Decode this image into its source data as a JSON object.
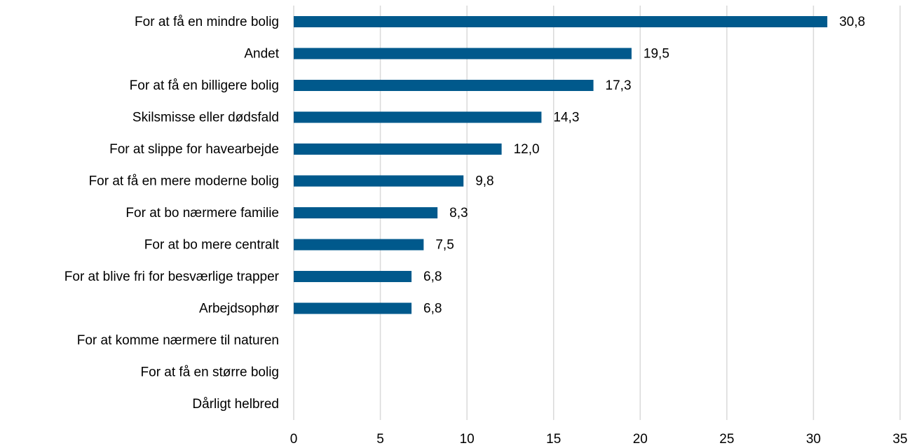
{
  "chart_data": {
    "type": "hbar",
    "categories": [
      "For at få en mindre bolig",
      "Andet",
      "For at få en billigere bolig",
      "Skilsmisse eller dødsfald",
      "For at slippe for havearbejde",
      "For at få en mere moderne bolig",
      "For at bo nærmere familie",
      "For at bo mere centralt",
      "For at blive fri for besværlige trapper",
      "Arbejdsophør",
      "For at komme nærmere til naturen",
      "For at få en større bolig",
      "Dårligt helbred"
    ],
    "values": [
      30.8,
      19.5,
      17.3,
      14.3,
      12.0,
      9.8,
      8.3,
      7.5,
      6.8,
      6.8,
      null,
      null,
      null
    ],
    "value_labels": [
      "30,8",
      "19,5",
      "17,3",
      "14,3",
      "12,0",
      "9,8",
      "8,3",
      "7,5",
      "6,8",
      "6,8",
      null,
      null,
      null
    ],
    "color": "#00598c",
    "xlim": [
      0,
      35
    ],
    "xticks": [
      0,
      5,
      10,
      15,
      20,
      25,
      30,
      35
    ],
    "grid": true
  }
}
